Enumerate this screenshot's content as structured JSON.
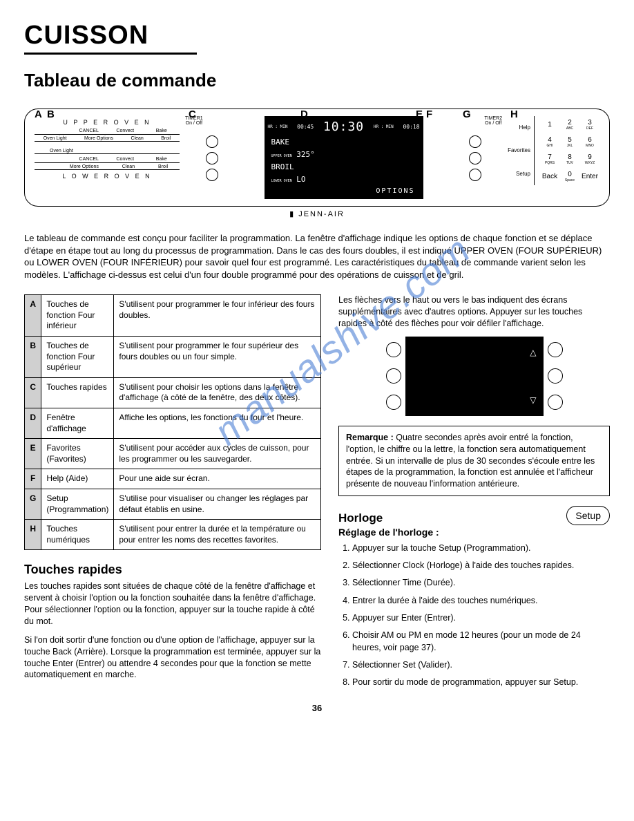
{
  "page": {
    "main_title": "CUISSON",
    "section_title": "Tableau de commande",
    "brand": "JENN-AIR",
    "page_number": "36",
    "watermark": "manualshive.com"
  },
  "panel_letters": [
    "A",
    "B",
    "C",
    "D",
    "E",
    "F",
    "G",
    "H"
  ],
  "panel": {
    "upper_oven": "U P P E R  O V E N",
    "lower_oven": "L O W E R  O V E N",
    "row1": [
      "CANCEL",
      "Convect",
      "Bake"
    ],
    "row2": [
      "Oven Light",
      "More Options",
      "Clean",
      "Broil"
    ],
    "timer1": "TIMER1",
    "timer2": "TIMER2",
    "onoff": "On / Off",
    "display": {
      "hrmin": "HR : MIN",
      "t1": "00:45",
      "clock": "10:30",
      "t2": "00:18",
      "l1": "BAKE",
      "l2_label": "UPPER OVEN",
      "l2": "325°",
      "l3": "BROIL",
      "l4_label": "LOWER OVEN",
      "l4": "LO",
      "options": "OPTIONS"
    },
    "right_labels": [
      "Help",
      "Favorites",
      "Setup"
    ],
    "keypad": [
      {
        "n": "1",
        "s": ""
      },
      {
        "n": "2",
        "s": "ABC"
      },
      {
        "n": "3",
        "s": "DEF"
      },
      {
        "n": "4",
        "s": "GHI"
      },
      {
        "n": "5",
        "s": "JKL"
      },
      {
        "n": "6",
        "s": "MNO"
      },
      {
        "n": "7",
        "s": "PQRS"
      },
      {
        "n": "8",
        "s": "TUV"
      },
      {
        "n": "9",
        "s": "WXYZ"
      },
      {
        "n": "Back",
        "s": ""
      },
      {
        "n": "0",
        "s": "Space"
      },
      {
        "n": "Enter",
        "s": ""
      }
    ],
    "lock": "lock"
  },
  "intro": "Le tableau de commande est conçu pour faciliter la programmation. La fenêtre d'affichage indique les options de chaque fonction et se déplace d'étape en étape tout au long du processus de programmation. Dans le cas des fours doubles, il est indiqué UPPER OVEN (FOUR SUPÉRIEUR) ou LOWER OVEN (FOUR INFÉRIEUR) pour savoir quel four est programmé. Les caractéristiques du tableau de commande varient selon les modèles. L'affichage ci-dessus est celui d'un four double programmé pour des opérations de cuisson et de gril.",
  "func_table": [
    {
      "l": "A",
      "name": "Touches de fonction Four inférieur",
      "desc": "S'utilisent pour programmer le four inférieur des fours doubles."
    },
    {
      "l": "B",
      "name": "Touches de fonction Four supérieur",
      "desc": "S'utilisent pour programmer le four supérieur des fours doubles ou un four simple."
    },
    {
      "l": "C",
      "name": "Touches rapides",
      "desc": "S'utilisent pour choisir les options dans la fenêtre d'affichage (à côté de la fenêtre, des deux côtés)."
    },
    {
      "l": "D",
      "name": "Fenêtre d'affichage",
      "desc": "Affiche les options, les fonctions du four et l'heure."
    },
    {
      "l": "E",
      "name": "Favorites (Favorites)",
      "desc": "S'utilisent pour accéder aux cycles de cuisson, pour les programmer ou les sauvegarder."
    },
    {
      "l": "F",
      "name": "Help (Aide)",
      "desc": "Pour une aide sur écran."
    },
    {
      "l": "G",
      "name": "Setup (Programmation)",
      "desc": "S'utilise pour visualiser ou changer les réglages par défaut établis en usine."
    },
    {
      "l": "H",
      "name": "Touches numériques",
      "desc": "S'utilisent pour entrer la durée et la température ou pour entrer les noms des recettes favorites."
    }
  ],
  "touches_rapides": {
    "title": "Touches rapides",
    "p1": "Les touches rapides sont situées de chaque côté de la fenêtre d'affichage et servent à choisir l'option ou la fonction souhaitée dans la fenêtre d'affichage. Pour sélectionner l'option ou la fonction, appuyer sur la touche rapide à côté du mot.",
    "p2": "Si l'on doit sortir d'une fonction ou d'une option de l'affichage, appuyer sur la touche Back (Arrière). Lorsque la programmation est terminée, appuyer sur la touche Enter (Entrer) ou attendre 4 secondes pour que la fonction se mette automatiquement en marche."
  },
  "right_col": {
    "arrows_text": "Les flèches vers le haut ou vers le bas indiquent des écrans supplémentaires avec d'autres options. Appuyer sur les touches rapides à côté des flèches pour voir défiler l'affichage.",
    "note_label": "Remarque :",
    "note_text": " Quatre secondes après avoir entré la fonction, l'option, le chiffre ou la lettre, la fonction sera automatiquement entrée. Si un intervalle de plus de 30 secondes s'écoule entre les étapes de la programmation, la fonction est annulée et l'afficheur présente de nouveau l'information antérieure."
  },
  "horloge": {
    "title": "Horloge",
    "subtitle": "Réglage de l'horloge :",
    "setup_label": "Setup",
    "steps": [
      "Appuyer sur la touche Setup (Programmation).",
      "Sélectionner Clock (Horloge) à l'aide des touches rapides.",
      "Sélectionner Time (Durée).",
      "Entrer la durée à l'aide des touches numériques.",
      "Appuyer sur Enter (Entrer).",
      "Choisir AM ou PM en mode 12 heures (pour un mode de 24 heures, voir page 37).",
      "Sélectionner Set (Valider).",
      "Pour sortir du mode de programmation, appuyer sur Setup."
    ]
  }
}
